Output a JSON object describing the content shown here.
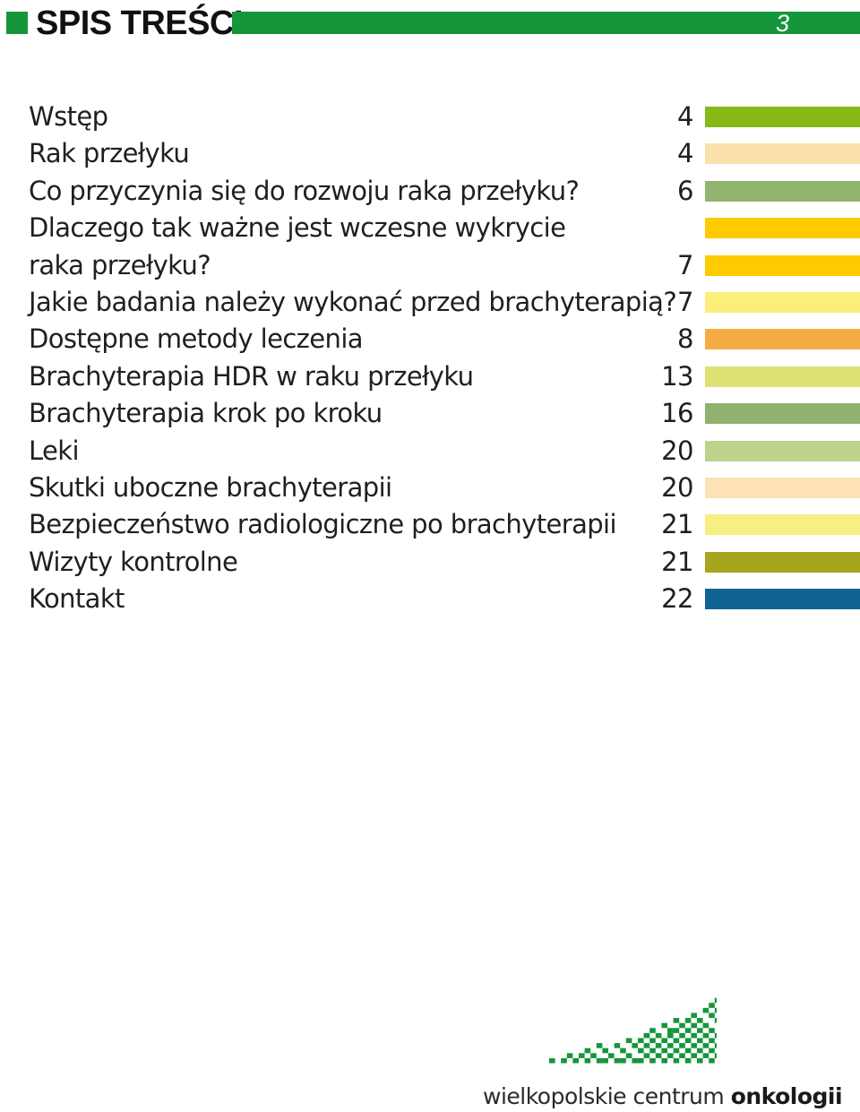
{
  "header": {
    "title": "SPIS TREŚCI",
    "page_number": "3",
    "accent_color": "#16963a"
  },
  "toc": [
    {
      "label": "Wstęp",
      "page": "4",
      "color": "#86b817"
    },
    {
      "label": "Rak przełyku",
      "page": "4",
      "color": "#fbe0a9"
    },
    {
      "label": "Co przyczynia się do rozwoju raka przełyku?",
      "page": "6",
      "color": "#91b56e"
    },
    {
      "label": "Dlaczego tak ważne jest wczesne wykrycie",
      "page": "",
      "color": "#fdcb00"
    },
    {
      "label": "raka przełyku?",
      "page": "7",
      "color": "#fdcb00"
    },
    {
      "label": "Jakie badania należy wykonać przed brachyterapią?",
      "page": "7",
      "color": "#fbee7b"
    },
    {
      "label": "Dostępne metody leczenia",
      "page": "8",
      "color": "#f4ad45"
    },
    {
      "label": "Brachyterapia HDR w raku przełyku",
      "page": "13",
      "color": "#dde173"
    },
    {
      "label": "Brachyterapia krok po kroku",
      "page": "16",
      "color": "#8fb26f"
    },
    {
      "label": "Leki",
      "page": "20",
      "color": "#bed38c"
    },
    {
      "label": "Skutki uboczne brachyterapii",
      "page": "20",
      "color": "#fce2b4"
    },
    {
      "label": "Bezpieczeństwo radiologiczne po brachyterapii",
      "page": "21",
      "color": "#f7ef82"
    },
    {
      "label": "Wizyty kontrolne",
      "page": "21",
      "color": "#a7a51b"
    },
    {
      "label": "Kontakt",
      "page": "22",
      "color": "#116394"
    }
  ],
  "logo": {
    "text_regular": "wielkopolskie centrum ",
    "text_bold": "onkologii",
    "color": "#16963a"
  }
}
